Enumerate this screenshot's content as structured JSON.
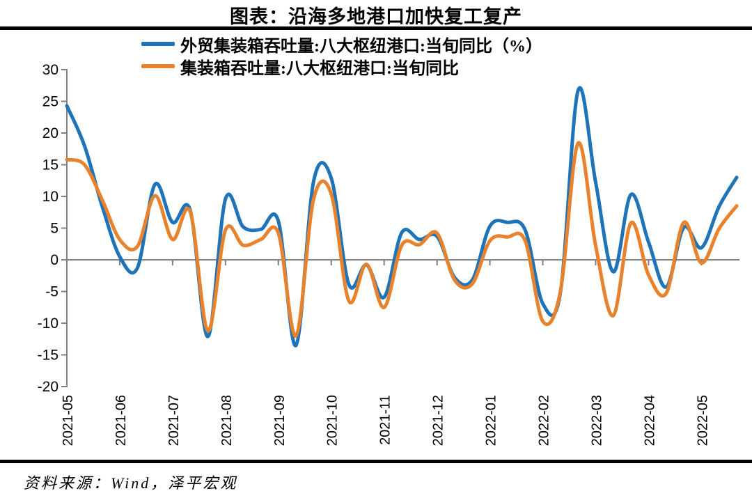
{
  "page": {
    "title": "图表：沿海多地港口加快复工复产",
    "source_note": "资料来源：Wind，泽平宏观"
  },
  "legend": {
    "items": [
      {
        "label": "外贸集装箱吞吐量:八大枢纽港口:当旬同比（%）",
        "color": "#1E73B9"
      },
      {
        "label": "集装箱吞吐量:八大枢纽港口:当旬同比",
        "color": "#E8822D"
      }
    ]
  },
  "chart_data": {
    "type": "line",
    "smooth": true,
    "title": "图表：沿海多地港口加快复工复产",
    "x_tick_labels": [
      "2021-05",
      "2021-06",
      "2021-07",
      "2021-08",
      "2021-09",
      "2021-10",
      "2021-11",
      "2021-12",
      "2022-01",
      "2022-02",
      "2022-03",
      "2022-04",
      "2022-05"
    ],
    "points_per_month": 3,
    "x_frequency": "10-day (旬) periods, 3 per labeled month",
    "ylim": [
      -20,
      30
    ],
    "y_ticks": [
      30,
      25,
      20,
      15,
      10,
      5,
      0,
      -5,
      -10,
      -15,
      -20
    ],
    "grid": false,
    "zero_line": true,
    "axis_color": "#808080",
    "legend_position": "top-left",
    "series": [
      {
        "name": "外贸集装箱吞吐量:八大枢纽港口:当旬同比（%）",
        "color": "#1E73B9",
        "values": [
          24.3,
          18.0,
          8.5,
          0.5,
          -1.3,
          11.9,
          5.9,
          7.8,
          -12.1,
          9.6,
          5.2,
          4.8,
          6.1,
          -13.5,
          12.4,
          12.9,
          -3.9,
          -0.8,
          -5.9,
          4.3,
          3.2,
          3.7,
          -2.8,
          -3.2,
          5.3,
          5.9,
          4.7,
          -6.9,
          -5.2,
          26.7,
          12.2,
          -1.9,
          10.3,
          2.8,
          -4.3,
          5.1,
          1.9,
          8.4,
          13.0
        ]
      },
      {
        "name": "集装箱吞吐量:八大枢纽港口:当旬同比",
        "color": "#E8822D",
        "values": [
          15.8,
          15.0,
          9.5,
          3.2,
          2.1,
          10.1,
          3.2,
          7.6,
          -11.2,
          4.7,
          2.3,
          3.2,
          4.2,
          -12.0,
          9.6,
          10.4,
          -6.5,
          -0.7,
          -7.5,
          2.3,
          2.4,
          4.2,
          -3.2,
          -3.8,
          3.0,
          3.6,
          3.0,
          -9.7,
          -5.0,
          18.4,
          2.2,
          -8.8,
          5.8,
          -2.4,
          -5.3,
          5.9,
          -0.5,
          4.9,
          8.5
        ]
      }
    ]
  }
}
